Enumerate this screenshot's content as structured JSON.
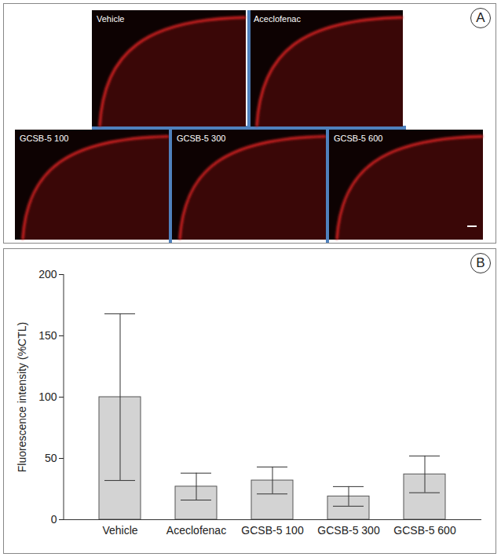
{
  "panel_a": {
    "label": "A",
    "images": [
      "Vehicle",
      "Aceclofenac",
      "GCSB-5 100",
      "GCSB-5 300",
      "GCSB-5 600"
    ]
  },
  "chart_data": {
    "type": "bar",
    "annotations": [
      "B"
    ],
    "categories": [
      "Vehicle",
      "Aceclofenac",
      "GCSB-5 100",
      "GCSB-5 300",
      "GCSB-5 600"
    ],
    "values": [
      100,
      27,
      32,
      19,
      37
    ],
    "errors": [
      68,
      11,
      11,
      8,
      15
    ],
    "y_label": "Fluorescence intensity (%CTL)",
    "color": "#d3d3d3",
    "ylim": [
      0,
      200
    ],
    "yticks": [
      0,
      50,
      100,
      150,
      200
    ],
    "grid": false
  }
}
